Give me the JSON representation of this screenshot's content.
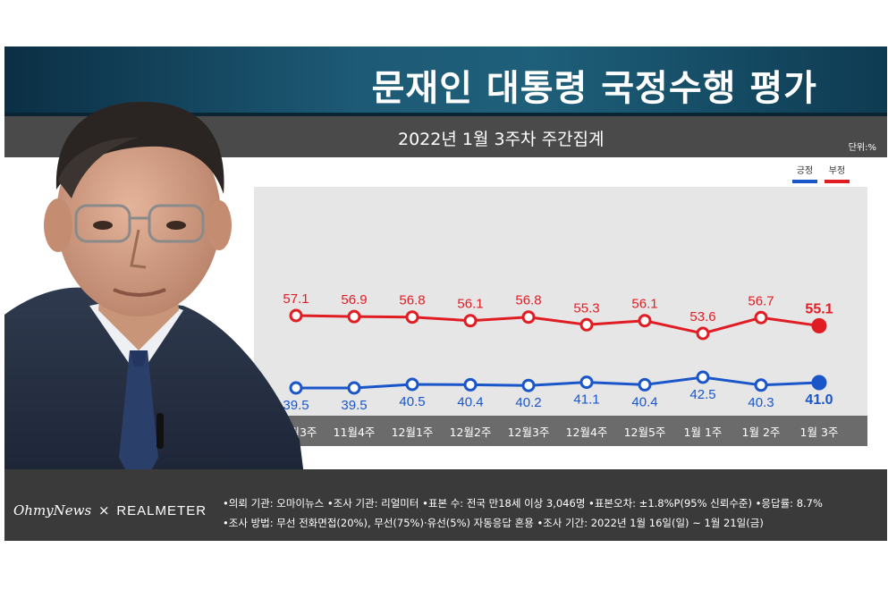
{
  "header": {
    "title": "문재인 대통령 국정수행 평가",
    "subtitle": "2022년 1월 3주차 주간집계",
    "unit": "단위:%"
  },
  "colors": {
    "positive": "#1a56c9",
    "negative": "#e11d24"
  },
  "chart_data": {
    "type": "line",
    "categories": [
      "11월3주",
      "11월4주",
      "12월1주",
      "12월2주",
      "12월3주",
      "12월4주",
      "12월5주",
      "1월 1주",
      "1월 2주",
      "1월 3주"
    ],
    "series": [
      {
        "name": "긍정",
        "values": [
          39.5,
          39.5,
          40.5,
          40.4,
          40.2,
          41.1,
          40.4,
          42.5,
          40.3,
          41.0
        ],
        "labels": [
          "39.5",
          "39.5",
          "40.5",
          "40.4",
          "40.2",
          "41.1",
          "40.4",
          "42.5",
          "40.3",
          "41.0"
        ]
      },
      {
        "name": "부정",
        "values": [
          57.1,
          56.9,
          56.8,
          56.1,
          56.8,
          55.3,
          56.1,
          53.6,
          56.7,
          55.1
        ],
        "labels": [
          "57.1",
          "56.9",
          "56.8",
          "56.1",
          "56.8",
          "55.3",
          "56.1",
          "53.6",
          "56.7",
          "55.1"
        ]
      }
    ],
    "legend_position": "top-right",
    "grid": false
  },
  "footer": {
    "brand_left": "OhmyNews",
    "brand_sep": "×",
    "brand_right": "REALMETER",
    "note_line1": "•의뢰 기관: 오마이뉴스 •조사 기관: 리얼미터 •표본 수: 전국 만18세 이상 3,046명 •표본오차: ±1.8%P(95% 신뢰수준) •응답률: 8.7%",
    "note_line2": "•조사 방법: 무선 전화면접(20%), 무선(75%)·유선(5%) 자동응답 혼용 •조사 기간: 2022년 1월 16일(일) ~ 1월 21일(금)"
  }
}
